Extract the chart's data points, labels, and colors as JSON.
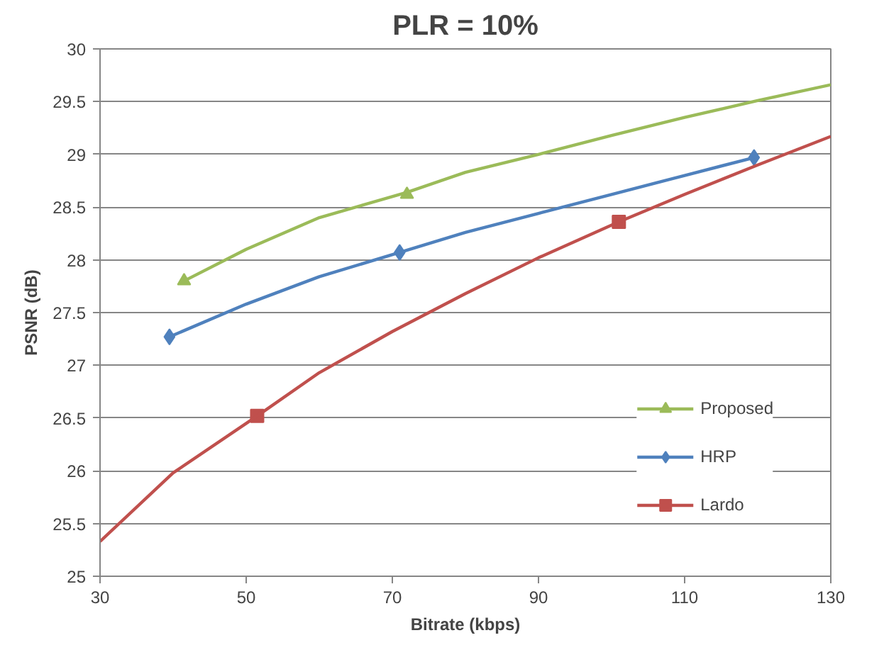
{
  "chart_data": {
    "type": "scatter",
    "title": "PLR = 10%",
    "xlabel": "Bitrate (kbps)",
    "ylabel": "PSNR (dB)",
    "xlim": [
      30,
      130
    ],
    "xticks": [
      30,
      50,
      70,
      90,
      110,
      130
    ],
    "ylim": [
      25,
      30
    ],
    "yticks": [
      25,
      25.5,
      26,
      26.5,
      27,
      27.5,
      28,
      28.5,
      29,
      29.5,
      30
    ],
    "grid": "y",
    "legend": "bottom right",
    "series": [
      {
        "name": "Proposed",
        "color": "#9bbb59",
        "marker": "triangle",
        "x": [
          41.5,
          72
        ],
        "values": [
          27.8,
          28.62
        ]
      },
      {
        "name": "HRP",
        "color": "#4f81bd",
        "marker": "diamond",
        "x": [
          39.5,
          71,
          119.5
        ],
        "values": [
          27.27,
          28.07,
          28.97
        ]
      },
      {
        "name": "Lardo",
        "color": "#c0504d",
        "marker": "square",
        "x": [
          51.5,
          101
        ],
        "values": [
          26.52,
          28.36
        ]
      },
      {
        "type": "line",
        "marker": "none",
        "color": "#9bbb59",
        "x": [
          41.5,
          50,
          60,
          72,
          80,
          90,
          100,
          110,
          120,
          130
        ],
        "values": [
          27.8,
          28.1,
          28.4,
          28.64,
          28.83,
          29.0,
          29.18,
          29.35,
          29.51,
          29.66
        ]
      },
      {
        "type": "line",
        "marker": "none",
        "color": "#4f81bd",
        "x": [
          39.5,
          50,
          60,
          71,
          80,
          90,
          100,
          110,
          119.5
        ],
        "values": [
          27.27,
          27.58,
          27.84,
          28.07,
          28.26,
          28.44,
          28.62,
          28.8,
          28.97
        ]
      },
      {
        "type": "line",
        "marker": "none",
        "color": "#c0504d",
        "x": [
          30,
          40,
          51.5,
          60,
          70,
          80,
          90,
          101,
          110,
          120,
          130
        ],
        "values": [
          25.33,
          25.98,
          26.52,
          26.93,
          27.32,
          27.68,
          28.02,
          28.36,
          28.62,
          28.9,
          29.17
        ]
      }
    ]
  }
}
